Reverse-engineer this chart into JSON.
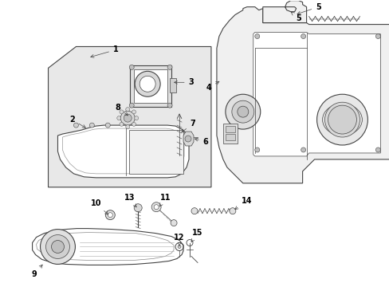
{
  "bg_color": "#ffffff",
  "line_color": "#444444",
  "gray_fill": "#e8e8e8",
  "dark_gray": "#aaaaaa",
  "fig_width": 4.89,
  "fig_height": 3.6,
  "dpi": 100
}
